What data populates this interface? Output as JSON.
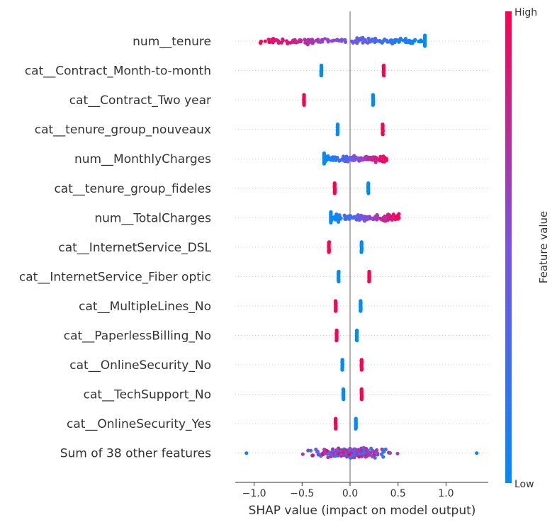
{
  "chart_data": {
    "type": "scatter",
    "subtype": "shap-beeswarm",
    "xlabel": "SHAP value (impact on model output)",
    "xlim": [
      -1.22,
      1.45
    ],
    "xticks": [
      -1.0,
      -0.5,
      0.0,
      0.5,
      1.0
    ],
    "xtick_labels": [
      "−1.0",
      "−0.5",
      "0.0",
      "0.5",
      "1.0"
    ],
    "zero_line": true,
    "colorbar": {
      "title": "Feature value",
      "high_label": "High",
      "low_label": "Low",
      "low_color": "#008bfb",
      "high_color": "#ff0051"
    },
    "features": [
      {
        "name": "num__tenure",
        "kind": "continuous",
        "min": -0.95,
        "max": 0.78,
        "high_side": "left",
        "cluster_max": 0.78
      },
      {
        "name": "cat__Contract_Month-to-month",
        "kind": "binary",
        "low_x": -0.3,
        "high_x": 0.35
      },
      {
        "name": "cat__Contract_Two year",
        "kind": "binary",
        "low_x": 0.24,
        "high_x": -0.48
      },
      {
        "name": "cat__tenure_group_nouveaux",
        "kind": "binary",
        "low_x": -0.13,
        "high_x": 0.34
      },
      {
        "name": "num__MonthlyCharges",
        "kind": "continuous",
        "min": -0.27,
        "max": 0.38,
        "high_side": "right",
        "cluster_min": -0.27
      },
      {
        "name": "cat__tenure_group_fideles",
        "kind": "binary",
        "low_x": 0.19,
        "high_x": -0.16
      },
      {
        "name": "num__TotalCharges",
        "kind": "continuous",
        "min": -0.2,
        "max": 0.52,
        "high_side": "right",
        "cluster_min": -0.2
      },
      {
        "name": "cat__InternetService_DSL",
        "kind": "binary",
        "low_x": 0.12,
        "high_x": -0.22
      },
      {
        "name": "cat__InternetService_Fiber optic",
        "kind": "binary",
        "low_x": -0.12,
        "high_x": 0.2
      },
      {
        "name": "cat__MultipleLines_No",
        "kind": "binary",
        "low_x": 0.11,
        "high_x": -0.15
      },
      {
        "name": "cat__PaperlessBilling_No",
        "kind": "binary",
        "low_x": 0.07,
        "high_x": -0.14
      },
      {
        "name": "cat__OnlineSecurity_No",
        "kind": "binary",
        "low_x": -0.08,
        "high_x": 0.12
      },
      {
        "name": "cat__TechSupport_No",
        "kind": "binary",
        "low_x": -0.07,
        "high_x": 0.12
      },
      {
        "name": "cat__OnlineSecurity_Yes",
        "kind": "binary",
        "low_x": 0.06,
        "high_x": -0.15
      },
      {
        "name": "Sum of 38 other features",
        "kind": "mixed",
        "min": -1.08,
        "max": 1.32
      }
    ]
  }
}
